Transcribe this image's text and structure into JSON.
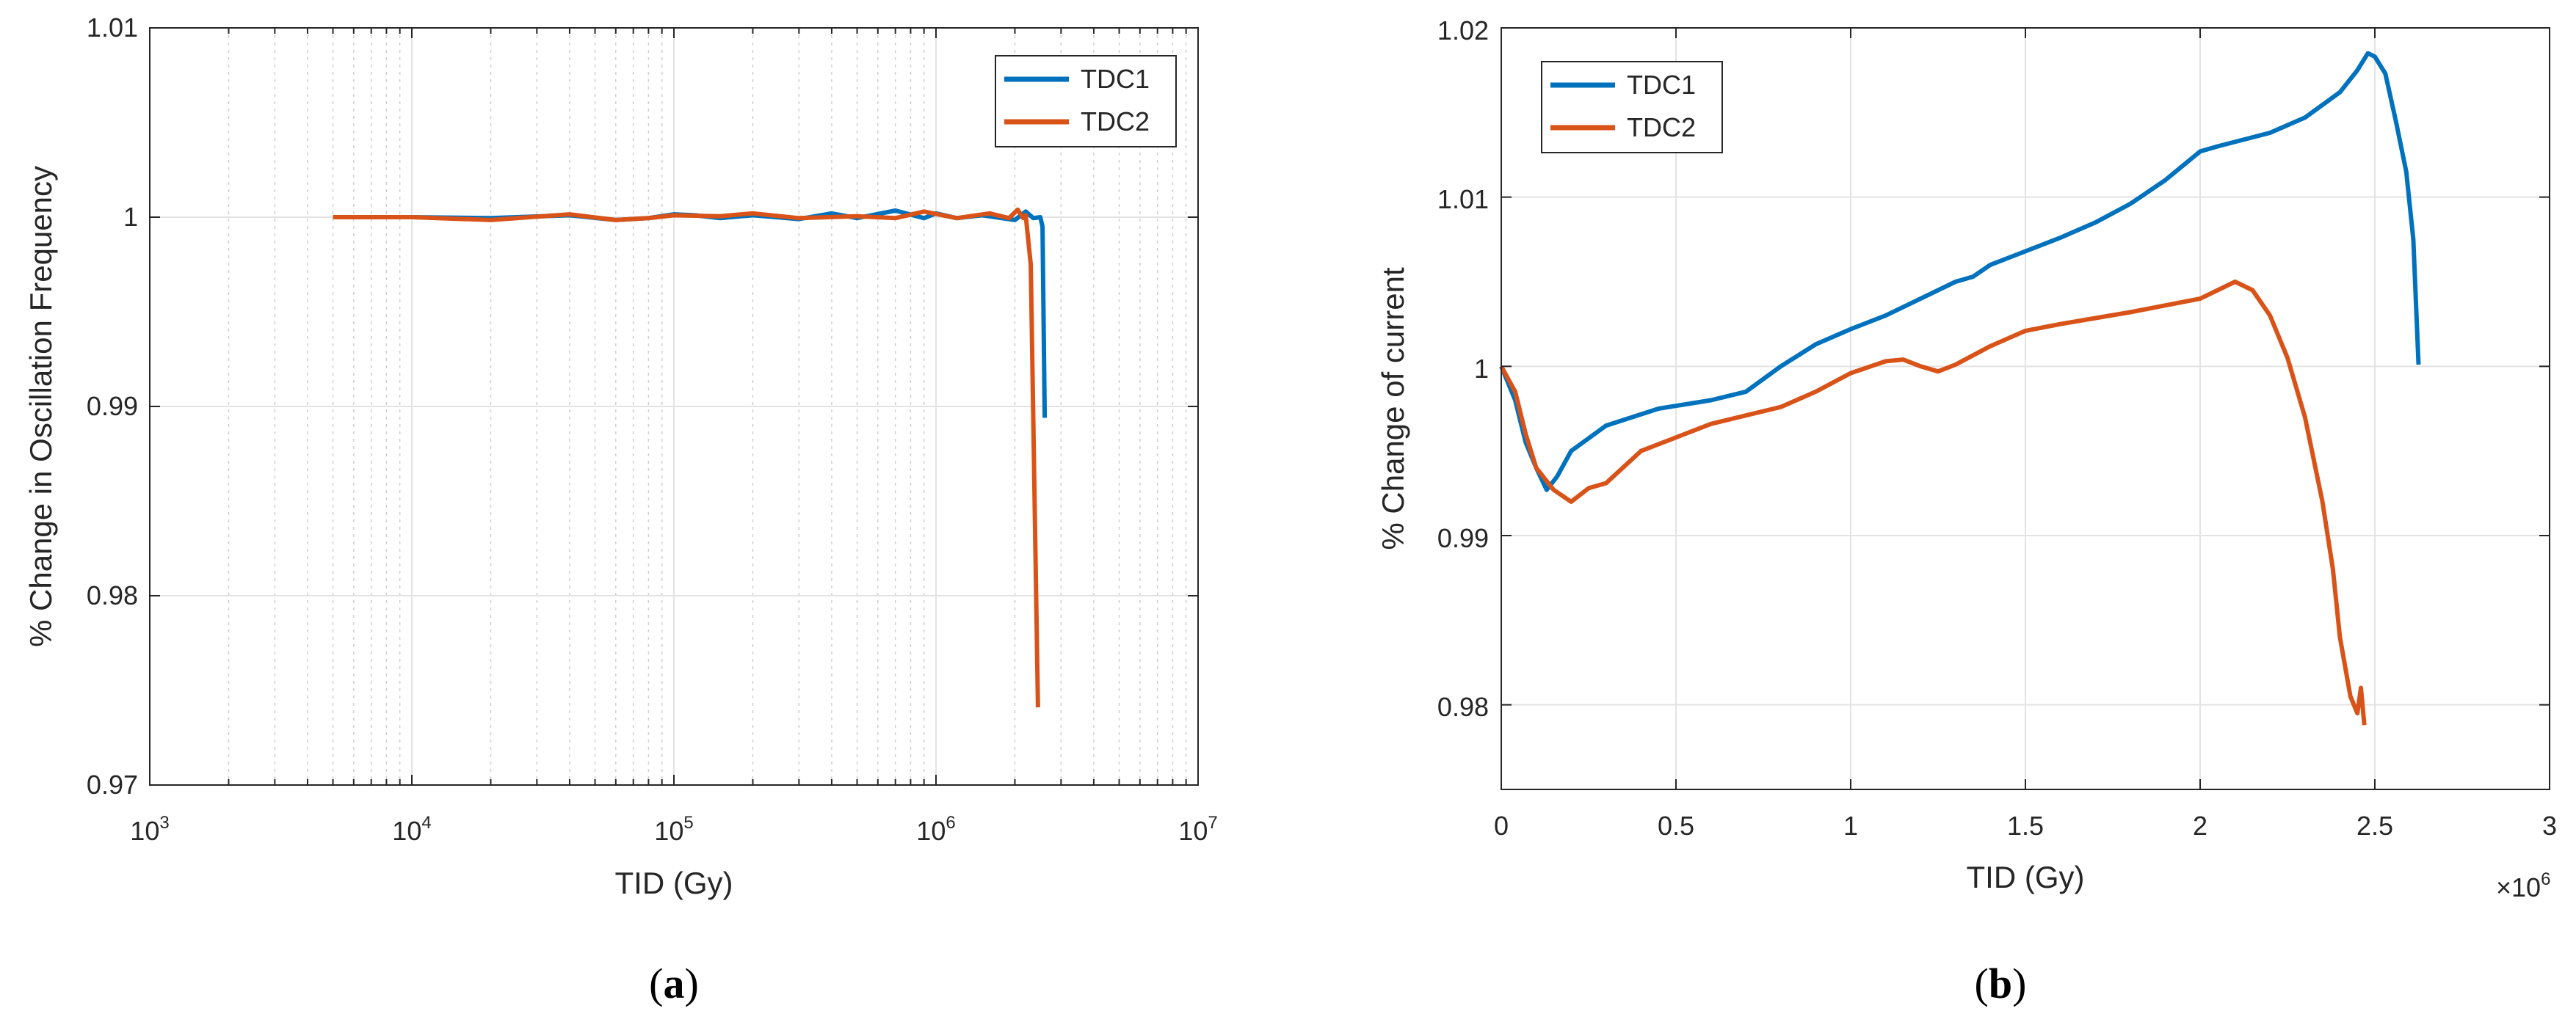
{
  "colors": {
    "tdc1": "#0072BD",
    "tdc2": "#D95319",
    "grid": "#e3e3e3",
    "axis": "#262626"
  },
  "chart_data": [
    {
      "type": "line",
      "caption_letter": "a",
      "xscale": "log",
      "xlabel": "TID (Gy)",
      "ylabel": "% Change in Oscillation Frequency",
      "xlim": [
        1000,
        10000000
      ],
      "ylim": [
        0.97,
        1.01
      ],
      "x_tick_labels": [
        {
          "base": "10",
          "exp": "3"
        },
        {
          "base": "10",
          "exp": "4"
        },
        {
          "base": "10",
          "exp": "5"
        },
        {
          "base": "10",
          "exp": "6"
        },
        {
          "base": "10",
          "exp": "7"
        }
      ],
      "y_ticks": [
        0.97,
        0.98,
        0.99,
        1,
        1.01
      ],
      "y_tick_labels": [
        "0.97",
        "0.98",
        "0.99",
        "1",
        "1.01"
      ],
      "grid": true,
      "legend": "top-right",
      "series": [
        {
          "name": "TDC1",
          "x": [
            5000,
            10000,
            20000,
            40000,
            60000,
            80000,
            100000,
            120000,
            150000,
            200000,
            300000,
            400000,
            500000,
            700000,
            900000,
            1000000,
            1200000,
            1500000,
            2000000,
            2200000,
            2350000,
            2500000,
            2550000,
            2600000
          ],
          "y": [
            1.0,
            1.0,
            0.99995,
            1.0001,
            0.99985,
            0.99995,
            1.00015,
            1.0001,
            0.99995,
            1.0001,
            0.9999,
            1.0002,
            0.99995,
            1.00035,
            0.99995,
            1.0002,
            0.99995,
            1.0001,
            0.99985,
            1.0003,
            0.99995,
            1.0,
            0.9995,
            0.9894
          ]
        },
        {
          "name": "TDC2",
          "x": [
            5000,
            10000,
            20000,
            40000,
            60000,
            80000,
            100000,
            150000,
            200000,
            300000,
            500000,
            700000,
            900000,
            1200000,
            1600000,
            1900000,
            2050000,
            2150000,
            2200000,
            2300000,
            2450000
          ],
          "y": [
            1.0,
            1.0,
            0.99985,
            1.00015,
            0.99985,
            0.99995,
            1.0001,
            1.00005,
            1.0002,
            0.99995,
            1.00005,
            0.99995,
            1.0003,
            0.99995,
            1.0002,
            0.99995,
            1.0004,
            0.99995,
            1.0001,
            0.9975,
            0.9741
          ]
        }
      ]
    },
    {
      "type": "line",
      "caption_letter": "b",
      "xscale": "linear",
      "xlabel": "TID (Gy)",
      "ylabel": "% Change of current",
      "xlim": [
        0,
        3
      ],
      "x_multiplier": {
        "base": "×10",
        "exp": "6"
      },
      "ylim": [
        0.975,
        1.02
      ],
      "x_ticks": [
        0,
        0.5,
        1,
        1.5,
        2,
        2.5,
        3
      ],
      "x_tick_labels": [
        "0",
        "0.5",
        "1",
        "1.5",
        "2",
        "2.5",
        "3"
      ],
      "y_ticks": [
        0.98,
        0.99,
        1,
        1.01,
        1.02
      ],
      "y_tick_labels": [
        "0.98",
        "0.99",
        "1",
        "1.01",
        "1.02"
      ],
      "grid": true,
      "legend": "top-left",
      "series": [
        {
          "name": "TDC1",
          "x": [
            0,
            0.04,
            0.07,
            0.1,
            0.13,
            0.16,
            0.2,
            0.3,
            0.45,
            0.6,
            0.7,
            0.8,
            0.9,
            1.0,
            1.1,
            1.15,
            1.2,
            1.3,
            1.35,
            1.4,
            1.5,
            1.6,
            1.7,
            1.8,
            1.9,
            2.0,
            2.05,
            2.2,
            2.3,
            2.4,
            2.45,
            2.48,
            2.5,
            2.53,
            2.56,
            2.59,
            2.61,
            2.625
          ],
          "y": [
            1.0,
            0.998,
            0.9955,
            0.994,
            0.9927,
            0.9935,
            0.995,
            0.9965,
            0.9975,
            0.998,
            0.9985,
            1.0,
            1.0013,
            1.0022,
            1.003,
            1.0035,
            1.004,
            1.005,
            1.0053,
            1.006,
            1.0068,
            1.0076,
            1.0085,
            1.0096,
            1.011,
            1.0127,
            1.013,
            1.0138,
            1.0147,
            1.0162,
            1.0175,
            1.0185,
            1.0183,
            1.0173,
            1.0145,
            1.0115,
            1.0075,
            1.0001
          ]
        },
        {
          "name": "TDC2",
          "x": [
            0,
            0.04,
            0.07,
            0.1,
            0.15,
            0.2,
            0.25,
            0.3,
            0.4,
            0.6,
            0.8,
            0.9,
            1.0,
            1.1,
            1.15,
            1.2,
            1.25,
            1.3,
            1.4,
            1.5,
            1.6,
            1.8,
            2.0,
            2.1,
            2.15,
            2.2,
            2.25,
            2.3,
            2.35,
            2.38,
            2.4,
            2.43,
            2.45,
            2.46,
            2.47
          ],
          "y": [
            1.0,
            0.9985,
            0.996,
            0.994,
            0.9927,
            0.992,
            0.9928,
            0.9931,
            0.995,
            0.9966,
            0.9976,
            0.9985,
            0.9996,
            1.0003,
            1.0004,
            1.0,
            0.9997,
            1.0001,
            1.0012,
            1.0021,
            1.0025,
            1.0032,
            1.004,
            1.005,
            1.0045,
            1.003,
            1.0005,
            0.997,
            0.992,
            0.988,
            0.984,
            0.9805,
            0.9795,
            0.981,
            0.9788
          ]
        }
      ]
    }
  ]
}
